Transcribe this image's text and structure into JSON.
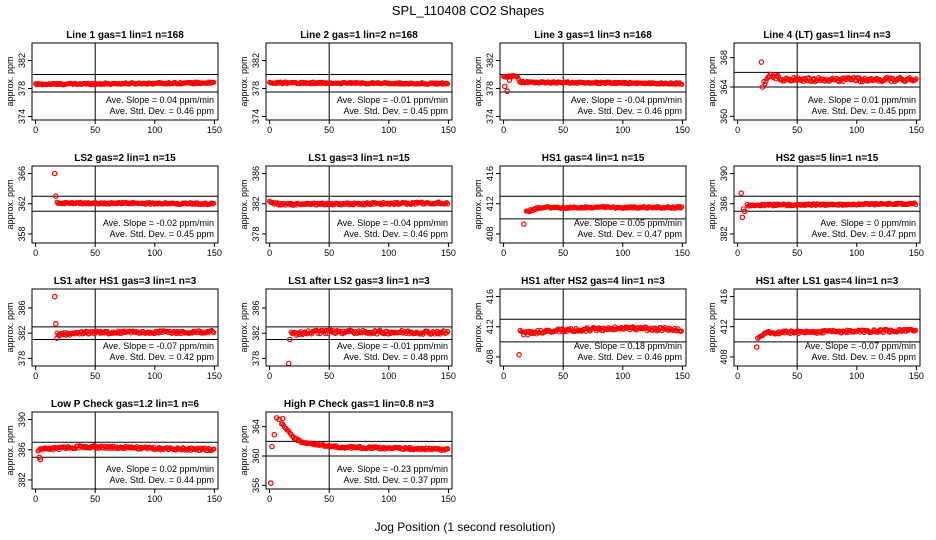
{
  "figure": {
    "title": "SPL_110408  CO2 Shapes",
    "xlabel": "Jog Position (1 second resolution)"
  },
  "colors": {
    "points": "#ff0000",
    "axes": "#000000",
    "background": "#ffffff"
  },
  "chart_data": [
    {
      "type": "scatter",
      "title": "Line 1 gas=1 lin=1 n=168",
      "ylabel": "approx. ppm",
      "xlim": [
        -3,
        153
      ],
      "ylim": [
        373.5,
        384.5
      ],
      "xticks": [
        0,
        50,
        100,
        150
      ],
      "yticks": [
        374,
        378,
        382
      ],
      "hlines": [
        377.5,
        380.0
      ],
      "vline": 50,
      "profile": [
        [
          0,
          378.6
        ],
        [
          150,
          378.8
        ]
      ],
      "noise": 0.12,
      "stats": [
        "Ave. Slope =  0.04  ppm/min",
        "Ave. Std. Dev. =  0.46  ppm"
      ]
    },
    {
      "type": "scatter",
      "title": "Line 2 gas=1 lin=2 n=168",
      "ylabel": "approx. ppm",
      "xlim": [
        -3,
        153
      ],
      "ylim": [
        373.5,
        384.5
      ],
      "xticks": [
        0,
        50,
        100,
        150
      ],
      "yticks": [
        374,
        378,
        382
      ],
      "hlines": [
        377.5,
        380.0
      ],
      "vline": 50,
      "profile": [
        [
          0,
          378.8
        ],
        [
          150,
          378.7
        ]
      ],
      "noise": 0.12,
      "stats": [
        "Ave. Slope =  -0.01  ppm/min",
        "Ave. Std. Dev. =  0.45  ppm"
      ]
    },
    {
      "type": "scatter",
      "title": "Line 3 gas=1 lin=3 n=168",
      "ylabel": "approx. ppm",
      "xlim": [
        -3,
        153
      ],
      "ylim": [
        373.5,
        384.5
      ],
      "xticks": [
        0,
        50,
        100,
        150
      ],
      "yticks": [
        374,
        378,
        382
      ],
      "hlines": [
        377.5,
        380.0
      ],
      "vline": 50,
      "profile": [
        [
          0,
          379.6
        ],
        [
          11,
          379.8
        ],
        [
          14,
          378.9
        ],
        [
          150,
          378.7
        ]
      ],
      "noise": 0.12,
      "outliers": [
        [
          1,
          378.3
        ],
        [
          3,
          377.6
        ],
        [
          5,
          379.2
        ]
      ],
      "stats": [
        "Ave. Slope =  -0.04  ppm/min",
        "Ave. Std. Dev. =  0.46  ppm"
      ]
    },
    {
      "type": "scatter",
      "title": "Line 4 (LT) gas=1 lin=4 n=3",
      "ylabel": "approx. ppm",
      "xlim": [
        -3,
        153
      ],
      "ylim": [
        359.5,
        370.0
      ],
      "xticks": [
        0,
        50,
        100,
        150
      ],
      "yticks": [
        360,
        364,
        368
      ],
      "hlines": [
        364.0,
        366.0
      ],
      "vline": 50,
      "profile": [
        [
          22,
          364.5
        ],
        [
          28,
          365.6
        ],
        [
          40,
          365.0
        ],
        [
          150,
          365.0
        ]
      ],
      "noise": 0.3,
      "outliers": [
        [
          20,
          367.4
        ],
        [
          21,
          364.0
        ]
      ],
      "stats": [
        "Ave. Slope =  0.01  ppm/min",
        "Ave. Std. Dev. =  0.45  ppm"
      ]
    },
    {
      "type": "scatter",
      "title": "LS2 gas=2 lin=1 n=15",
      "ylabel": "approx. ppm",
      "xlim": [
        -3,
        153
      ],
      "ylim": [
        356.8,
        367.0
      ],
      "xticks": [
        0,
        50,
        100,
        150
      ],
      "yticks": [
        358,
        362,
        366
      ],
      "hlines": [
        361.0,
        363.0
      ],
      "vline": 50,
      "profile": [
        [
          18,
          362.1
        ],
        [
          150,
          362.0
        ]
      ],
      "noise": 0.12,
      "outliers": [
        [
          16,
          366.0
        ],
        [
          17,
          363.0
        ]
      ],
      "stats": [
        "Ave. Slope =  -0.02  ppm/min",
        "Ave. Std. Dev. =  0.45  ppm"
      ]
    },
    {
      "type": "scatter",
      "title": "LS1 gas=3 lin=1 n=15",
      "ylabel": "approx. ppm",
      "xlim": [
        -3,
        153
      ],
      "ylim": [
        376.8,
        387.0
      ],
      "xticks": [
        0,
        50,
        100,
        150
      ],
      "yticks": [
        378,
        382,
        386
      ],
      "hlines": [
        381.0,
        383.0
      ],
      "vline": 50,
      "profile": [
        [
          0,
          382.2
        ],
        [
          10,
          381.9
        ],
        [
          150,
          382.1
        ]
      ],
      "noise": 0.15,
      "stats": [
        "Ave. Slope =  -0.04  ppm/min",
        "Ave. Std. Dev. =  0.46  ppm"
      ]
    },
    {
      "type": "scatter",
      "title": "HS1 gas=4 lin=1 n=15",
      "ylabel": "approx. ppm",
      "xlim": [
        -3,
        153
      ],
      "ylim": [
        406.8,
        417.0
      ],
      "xticks": [
        0,
        50,
        100,
        150
      ],
      "yticks": [
        408,
        412,
        416
      ],
      "hlines": [
        410.0,
        413.0
      ],
      "vline": 50,
      "profile": [
        [
          19,
          410.9
        ],
        [
          30,
          411.5
        ],
        [
          150,
          411.5
        ]
      ],
      "noise": 0.12,
      "outliers": [
        [
          17,
          409.3
        ]
      ],
      "stats": [
        "Ave. Slope =  0.05  ppm/min",
        "Ave. Std. Dev. =  0.47  ppm"
      ]
    },
    {
      "type": "scatter",
      "title": "HS2 gas=5 lin=1 n=15",
      "ylabel": "approx. ppm",
      "xlim": [
        -3,
        153
      ],
      "ylim": [
        380.8,
        391.0
      ],
      "xticks": [
        0,
        50,
        100,
        150
      ],
      "yticks": [
        382,
        386,
        390
      ],
      "hlines": [
        385.0,
        387.0
      ],
      "vline": 50,
      "profile": [
        [
          8,
          385.8
        ],
        [
          150,
          386.0
        ]
      ],
      "noise": 0.12,
      "outliers": [
        [
          3,
          387.4
        ],
        [
          4,
          384.2
        ],
        [
          5,
          385.3
        ],
        [
          6,
          385.0
        ]
      ],
      "stats": [
        "Ave. Slope =  0  ppm/min",
        "Ave. Std. Dev. =  0.47  ppm"
      ]
    },
    {
      "type": "scatter",
      "title": "LS1 after HS1 gas=3 lin=1 n=3",
      "ylabel": "approx. ppm",
      "xlim": [
        -3,
        153
      ],
      "ylim": [
        376.8,
        389.0
      ],
      "xticks": [
        0,
        50,
        100,
        150
      ],
      "yticks": [
        378,
        382,
        386
      ],
      "hlines": [
        381.0,
        383.0
      ],
      "vline": 50,
      "profile": [
        [
          18,
          381.8
        ],
        [
          40,
          382.1
        ],
        [
          150,
          382.2
        ]
      ],
      "noise": 0.25,
      "outliers": [
        [
          16,
          387.8
        ],
        [
          17,
          383.5
        ],
        [
          18,
          381.2
        ]
      ],
      "stats": [
        "Ave. Slope =  -0.07  ppm/min",
        "Ave. Std. Dev. =  0.42  ppm"
      ]
    },
    {
      "type": "scatter",
      "title": "LS1 after LS2 gas=3 lin=1 n=3",
      "ylabel": "approx. ppm",
      "xlim": [
        -3,
        153
      ],
      "ylim": [
        376.8,
        389.0
      ],
      "xticks": [
        0,
        50,
        100,
        150
      ],
      "yticks": [
        378,
        382,
        386
      ],
      "hlines": [
        381.0,
        383.0
      ],
      "vline": 50,
      "profile": [
        [
          18,
          381.9
        ],
        [
          40,
          382.2
        ],
        [
          150,
          382.1
        ]
      ],
      "noise": 0.3,
      "outliers": [
        [
          16,
          377.2
        ],
        [
          17,
          381.0
        ]
      ],
      "stats": [
        "Ave. Slope =  -0.01  ppm/min",
        "Ave. Std. Dev. =  0.48  ppm"
      ]
    },
    {
      "type": "scatter",
      "title": "HS1 after HS2 gas=4 lin=1 n=3",
      "ylabel": "approx. ppm",
      "xlim": [
        -3,
        153
      ],
      "ylim": [
        406.8,
        417.0
      ],
      "xticks": [
        0,
        50,
        100,
        150
      ],
      "yticks": [
        408,
        412,
        416
      ],
      "hlines": [
        410.0,
        413.0
      ],
      "vline": 50,
      "profile": [
        [
          15,
          411.1
        ],
        [
          50,
          411.5
        ],
        [
          100,
          411.8
        ],
        [
          150,
          411.6
        ]
      ],
      "noise": 0.25,
      "outliers": [
        [
          13,
          408.3
        ],
        [
          14,
          411.5
        ]
      ],
      "stats": [
        "Ave. Slope =  0.18  ppm/min",
        "Ave. Std. Dev. =  0.46  ppm"
      ]
    },
    {
      "type": "scatter",
      "title": "HS1 after LS1 gas=4 lin=1 n=3",
      "ylabel": "approx. ppm",
      "xlim": [
        -3,
        153
      ],
      "ylim": [
        406.8,
        417.0
      ],
      "xticks": [
        0,
        50,
        100,
        150
      ],
      "yticks": [
        408,
        412,
        416
      ],
      "hlines": [
        410.0,
        413.0
      ],
      "vline": 50,
      "profile": [
        [
          18,
          410.8
        ],
        [
          25,
          411.2
        ],
        [
          150,
          411.5
        ]
      ],
      "noise": 0.2,
      "outliers": [
        [
          16,
          409.3
        ],
        [
          17,
          410.5
        ]
      ],
      "stats": [
        "Ave. Slope =  -0.07  ppm/min",
        "Ave. Std. Dev. =  0.45  ppm"
      ]
    },
    {
      "type": "scatter",
      "title": "Low P Check gas=1.2 lin=1 n=6",
      "ylabel": "approx. ppm",
      "xlim": [
        -3,
        153
      ],
      "ylim": [
        380.8,
        391.0
      ],
      "xticks": [
        0,
        50,
        100,
        150
      ],
      "yticks": [
        382,
        386,
        390
      ],
      "hlines": [
        385.0,
        387.0
      ],
      "vline": 50,
      "profile": [
        [
          2,
          386.0
        ],
        [
          40,
          386.4
        ],
        [
          150,
          386.0
        ]
      ],
      "noise": 0.18,
      "outliers": [
        [
          3,
          385.0
        ],
        [
          4,
          384.7
        ]
      ],
      "stats": [
        "Ave. Slope =  0.02  ppm/min",
        "Ave. Std. Dev. =  0.44  ppm"
      ]
    },
    {
      "type": "scatter",
      "title": "High P Check gas=1 lin=0.8 n=3",
      "ylabel": "approx. ppm",
      "xlim": [
        -3,
        153
      ],
      "ylim": [
        355.5,
        366.0
      ],
      "xticks": [
        0,
        50,
        100,
        150
      ],
      "yticks": [
        356,
        360,
        364
      ],
      "hlines": [
        360.0,
        362.0
      ],
      "vline": 50,
      "profile": [
        [
          10,
          364.5
        ],
        [
          20,
          362.5
        ],
        [
          30,
          361.7
        ],
        [
          60,
          361.2
        ],
        [
          150,
          360.9
        ]
      ],
      "noise": 0.15,
      "outliers": [
        [
          1,
          356.3
        ],
        [
          2,
          361.3
        ],
        [
          4,
          362.9
        ],
        [
          6,
          365.2
        ],
        [
          8,
          365.0
        ],
        [
          11,
          365.1
        ]
      ],
      "stats": [
        "Ave. Slope =  -0.23  ppm/min",
        "Ave. Std. Dev. =  0.37  ppm"
      ]
    }
  ]
}
